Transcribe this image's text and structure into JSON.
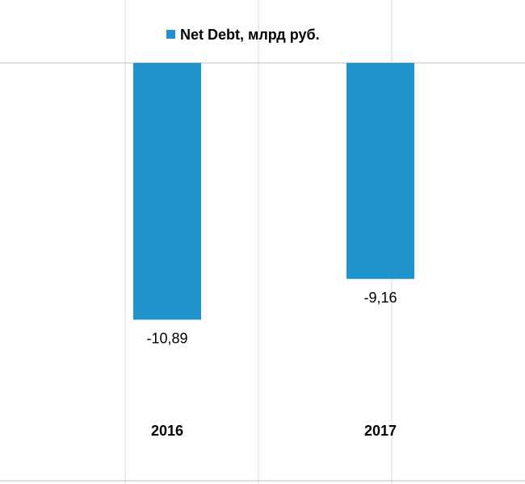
{
  "chart_data": {
    "type": "bar",
    "categories": [
      "2016",
      "2017"
    ],
    "series": [
      {
        "name": "Net Debt, млрд руб.",
        "values": [
          -10.89,
          -9.16
        ],
        "labels": [
          "-10,89",
          "-9,16"
        ],
        "color": "#1f92c9"
      }
    ],
    "ylim": [
      -14.3,
      0
    ],
    "legend": "top-center",
    "grid": false
  },
  "colors": {
    "bar": "#1f92c9",
    "frame": "#bfbfbf",
    "gridline": "#d9d9d9"
  }
}
